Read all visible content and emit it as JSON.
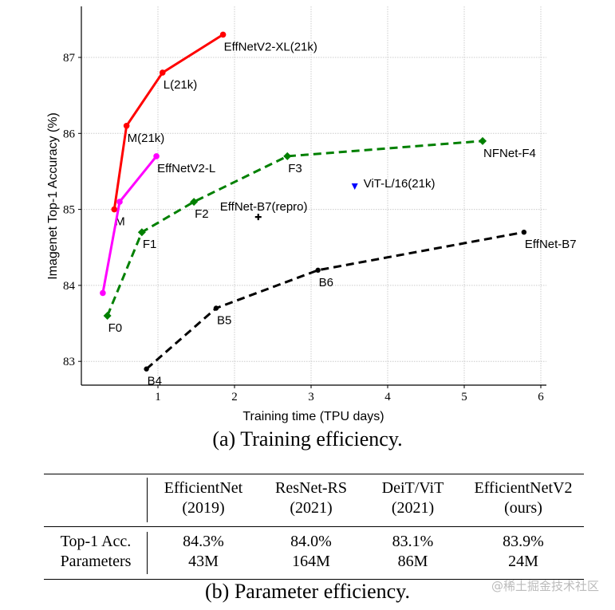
{
  "chart_data": {
    "type": "line",
    "xlabel": "Training time (TPU days)",
    "ylabel": "Imagenet Top-1 Accuracy (%)",
    "xlim": [
      0.05,
      6.05
    ],
    "ylim": [
      82.7,
      87.7
    ],
    "xticks": [
      1,
      2,
      3,
      4,
      5,
      6
    ],
    "yticks": [
      83,
      84,
      85,
      86,
      87
    ],
    "grid": true,
    "series": [
      {
        "color": "#ff0000",
        "style": "solid",
        "marker": "circle",
        "points": [
          {
            "x": 0.43,
            "y": 85.0,
            "label": "M"
          },
          {
            "x": 0.59,
            "y": 86.1,
            "label": "M(21k)"
          },
          {
            "x": 1.06,
            "y": 86.8,
            "label": "L(21k)"
          },
          {
            "x": 1.85,
            "y": 87.3,
            "label": "EffNetV2-XL(21k)"
          }
        ]
      },
      {
        "color": "#ff00ff",
        "style": "solid",
        "marker": "circle",
        "points": [
          {
            "x": 0.28,
            "y": 83.9,
            "label": ""
          },
          {
            "x": 0.5,
            "y": 85.1,
            "label": ""
          },
          {
            "x": 0.98,
            "y": 85.7,
            "label": "EffNetV2-L"
          }
        ]
      },
      {
        "color": "#008000",
        "style": "dashed",
        "marker": "diamond",
        "points": [
          {
            "x": 0.34,
            "y": 83.6,
            "label": "F0"
          },
          {
            "x": 0.79,
            "y": 84.7,
            "label": "F1"
          },
          {
            "x": 1.47,
            "y": 85.1,
            "label": "F2"
          },
          {
            "x": 2.69,
            "y": 85.7,
            "label": "F3"
          },
          {
            "x": 5.24,
            "y": 85.9,
            "label": "NFNet-F4"
          }
        ]
      },
      {
        "color": "#000000",
        "style": "dashed",
        "marker": "pentagon",
        "points": [
          {
            "x": 0.85,
            "y": 82.9,
            "label": "B4"
          },
          {
            "x": 1.76,
            "y": 83.7,
            "label": "B5"
          },
          {
            "x": 3.09,
            "y": 84.2,
            "label": "B6"
          },
          {
            "x": 5.78,
            "y": 84.7,
            "label": "EffNet-B7"
          }
        ]
      },
      {
        "color": "#0000ff",
        "style": "none",
        "marker": "triangle-down",
        "points": [
          {
            "x": 3.57,
            "y": 85.3,
            "label": "ViT-L/16(21k)"
          }
        ]
      },
      {
        "color": "#000000",
        "style": "none",
        "marker": "plus",
        "points": [
          {
            "x": 2.31,
            "y": 84.9,
            "label": "EffNet-B7(repro)"
          }
        ]
      }
    ]
  },
  "captions": {
    "a": "(a) Training efficiency.",
    "b": "(b) Parameter efficiency."
  },
  "table": {
    "headers": [
      {
        "name": "EfficientNet",
        "year": "(2019)"
      },
      {
        "name": "ResNet-RS",
        "year": "(2021)"
      },
      {
        "name": "DeiT/ViT",
        "year": "(2021)"
      },
      {
        "name": "EfficientNetV2",
        "year": "(ours)"
      }
    ],
    "rows": [
      {
        "label": "Top-1 Acc.",
        "values": [
          "84.3%",
          "84.0%",
          "83.1%",
          "83.9%"
        ]
      },
      {
        "label": "Parameters",
        "values": [
          "43M",
          "164M",
          "86M",
          "24M"
        ]
      }
    ]
  },
  "watermark": "@稀土掘金技术社区"
}
